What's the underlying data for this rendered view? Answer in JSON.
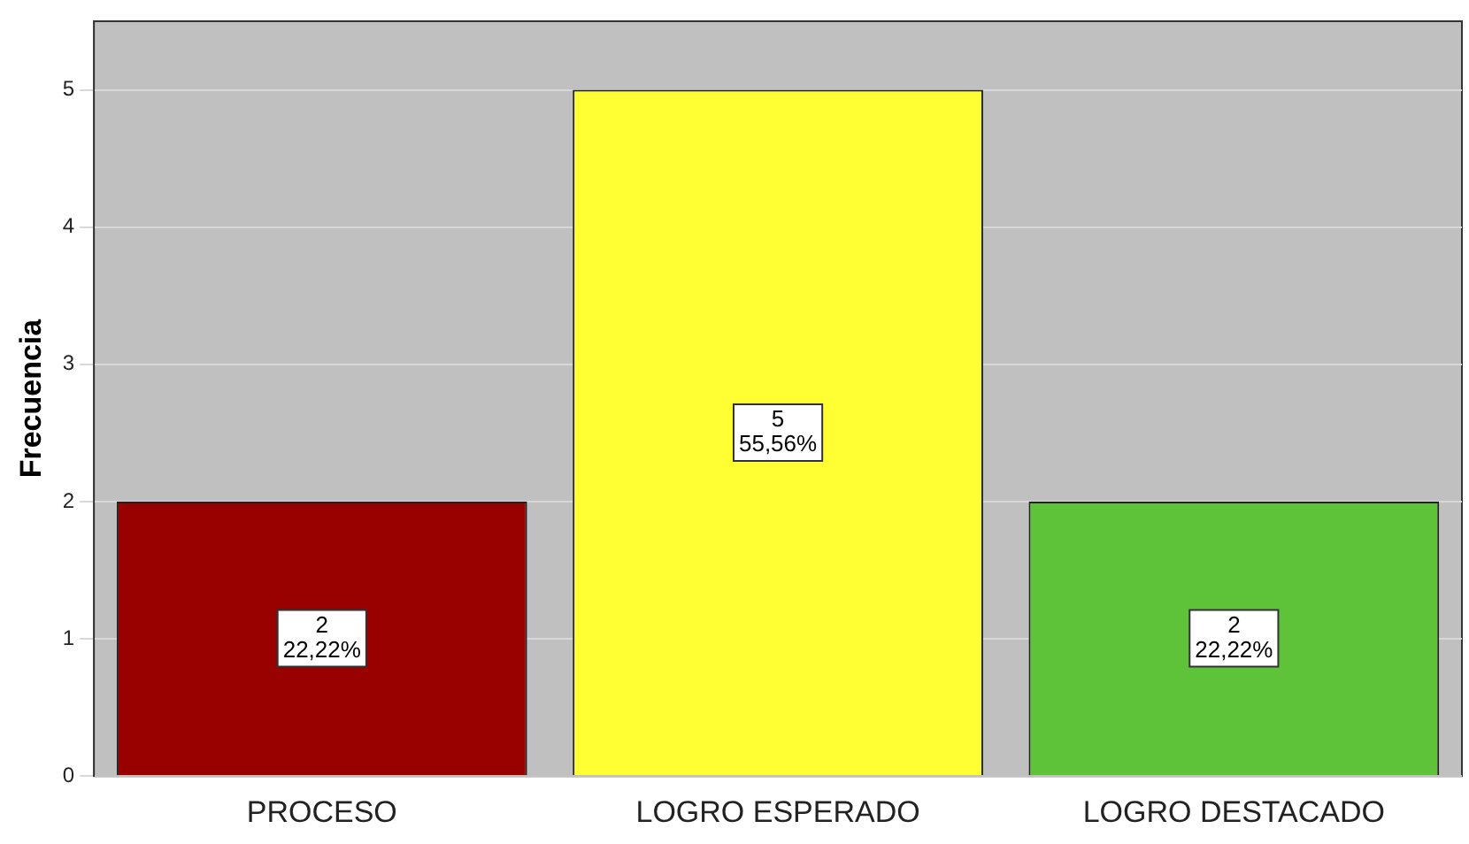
{
  "chart_data": {
    "type": "bar",
    "ylabel": "Frecuencia",
    "categories": [
      "PROCESO",
      "LOGRO ESPERADO",
      "LOGRO DESTACADO"
    ],
    "values": [
      2,
      5,
      2
    ],
    "colors": [
      "#990000",
      "#ffff33",
      "#5fc33a"
    ],
    "value_labels": [
      "2\n22,22%",
      "5\n55,56%",
      "2\n22,22%"
    ],
    "ylim": [
      0,
      5.5
    ],
    "yticks": [
      0,
      1,
      2,
      3,
      4,
      5
    ],
    "grid": "y",
    "legend": false
  }
}
